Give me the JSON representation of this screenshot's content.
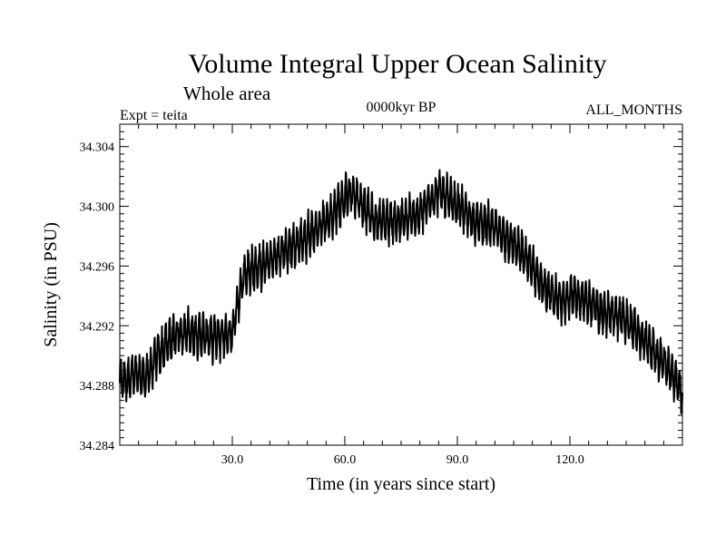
{
  "chart_data": {
    "type": "line",
    "title": "Volume Integral Upper Ocean Salinity",
    "subtitle": "Whole area",
    "header_left": "Expt = teita",
    "header_center": "0000kyr BP",
    "header_right": "ALL_MONTHS",
    "xlabel": "Time (in years since start)",
    "ylabel": "Salinity (in PSU)",
    "xlim": [
      0,
      150
    ],
    "ylim": [
      34.284,
      34.3055
    ],
    "x_ticks": [
      30,
      60,
      90,
      120
    ],
    "x_tick_labels": [
      "30.0",
      "60.0",
      "90.0",
      "120.0"
    ],
    "y_ticks": [
      34.284,
      34.288,
      34.292,
      34.296,
      34.3,
      34.304
    ],
    "y_tick_labels": [
      "34.284",
      "34.288",
      "34.292",
      "34.296",
      "34.300",
      "34.304"
    ],
    "series": [
      {
        "name": "Salinity",
        "annual_amplitude": 0.0012,
        "trend_x": [
          0,
          4,
          7,
          10,
          15,
          20,
          25,
          30,
          33,
          38,
          44,
          50,
          55,
          60,
          62,
          68,
          75,
          80,
          85,
          90,
          95,
          100,
          105,
          110,
          113,
          117,
          122,
          128,
          134,
          140,
          145,
          148,
          150
        ],
        "trend_y": [
          34.2883,
          34.2887,
          34.2885,
          34.29,
          34.2915,
          34.2915,
          34.2912,
          34.2915,
          34.2955,
          34.296,
          34.297,
          34.298,
          34.299,
          34.3005,
          34.301,
          34.299,
          34.299,
          34.2995,
          34.301,
          34.3,
          34.299,
          34.2985,
          34.2975,
          34.296,
          34.2945,
          34.2937,
          34.294,
          34.293,
          34.2925,
          34.291,
          34.2895,
          34.2885,
          34.2875
        ]
      }
    ]
  }
}
